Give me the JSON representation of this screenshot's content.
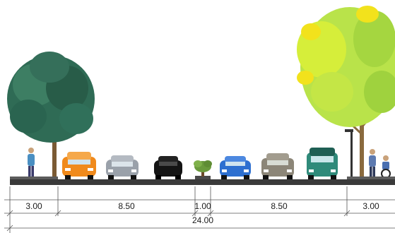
{
  "dimensions": {
    "segments": [
      {
        "label": "3.00",
        "value": 3.0
      },
      {
        "label": "8.50",
        "value": 8.5
      },
      {
        "label": "1.00",
        "value": 1.0
      },
      {
        "label": "8.50",
        "value": 8.5
      },
      {
        "label": "3.00",
        "value": 3.0
      }
    ],
    "total_label": "24.00"
  },
  "colors": {
    "road": "#3a3a3a",
    "curb": "#5c5c5c",
    "tree_left": "#2f6b55",
    "tree_right_light": "#b9e34a",
    "tree_right_yellow": "#f2e21c",
    "trunk": "#8a6a3e",
    "car_orange": "#f08a1c",
    "car_silver": "#9aa1aa",
    "car_black": "#141414",
    "car_blue": "#2d6fd0",
    "car_gray": "#8c8678",
    "car_teal": "#2f8a7a",
    "median_plant": "#6a9a3c"
  },
  "icons": [
    "tree-left-icon",
    "tree-right-icon",
    "pedestrian-icon",
    "car-icon",
    "median-plant-icon",
    "street-lamp-icon",
    "wheelchair-user-icon"
  ]
}
